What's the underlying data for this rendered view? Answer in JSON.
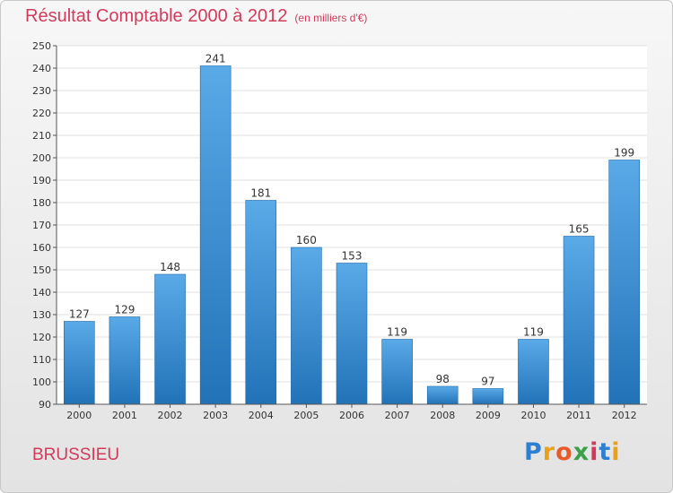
{
  "title": "Résultat Comptable 2000 à 2012",
  "subtitle": "(en milliers d'€)",
  "place": "BRUSSIEU",
  "logo": {
    "letters": [
      "P",
      "r",
      "o",
      "x",
      "i",
      "t",
      "i"
    ],
    "colors": [
      "#2d7fd0",
      "#e8a21a",
      "#e85a2a",
      "#3aa04a",
      "#d13a5a",
      "#2d7fd0",
      "#e8a21a"
    ]
  },
  "colors": {
    "title": "#d13a5a",
    "bar_light": "#5aaae8",
    "bar_dark": "#2272b8",
    "grid": "#e0e0e0"
  },
  "chart_data": {
    "type": "bar",
    "title": "Résultat Comptable 2000 à 2012",
    "subtitle": "(en milliers d'€)",
    "categories": [
      "2000",
      "2001",
      "2002",
      "2003",
      "2004",
      "2005",
      "2006",
      "2007",
      "2008",
      "2009",
      "2010",
      "2011",
      "2012"
    ],
    "values": [
      127,
      129,
      148,
      241,
      181,
      160,
      153,
      119,
      98,
      97,
      119,
      165,
      199
    ],
    "ylim": [
      90,
      250
    ],
    "yticks": [
      90,
      100,
      110,
      120,
      130,
      140,
      150,
      160,
      170,
      180,
      190,
      200,
      210,
      220,
      230,
      240,
      250
    ],
    "grid": true,
    "data_labels": true
  }
}
